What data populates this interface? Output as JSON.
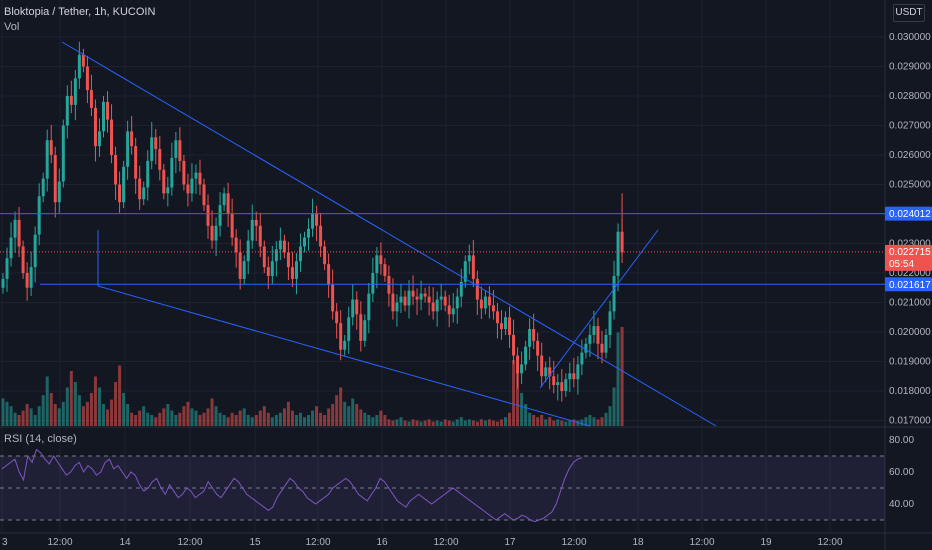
{
  "header": {
    "symbol": "Bloktopia / Tether, 1h, KUCOIN",
    "volume_label": "Vol",
    "currency": "USDT",
    "rsi_label": "RSI (14, close)"
  },
  "colors": {
    "background": "#131722",
    "grid": "#1e222d",
    "up": "#26a69a",
    "down": "#ef5350",
    "trendline": "#2962ff",
    "rsi_line": "#7e57c2",
    "axis_text": "#b2b5be"
  },
  "price_axis": {
    "ticks": [
      "0.030000",
      "0.029000",
      "0.028000",
      "0.027000",
      "0.026000",
      "0.025000",
      "0.024000",
      "0.023000",
      "0.022000",
      "0.021000",
      "0.020000",
      "0.019000",
      "0.018000",
      "0.017000"
    ]
  },
  "rsi_axis": {
    "ticks": [
      "80.00",
      "60.00",
      "40.00"
    ]
  },
  "time_axis": {
    "ticks": [
      "3",
      "12:00",
      "14",
      "12:00",
      "15",
      "12:00",
      "16",
      "12:00",
      "17",
      "12:00",
      "18",
      "12:00",
      "19",
      "12:00"
    ]
  },
  "price_labels": {
    "upper_level": "0.024012",
    "last_price": "0.022715",
    "countdown": "05:54",
    "lower_level": "0.021617"
  },
  "chart_data": {
    "type": "candlestick",
    "ylim": [
      0.0168,
      0.0312
    ],
    "horizontal_levels": [
      0.024012,
      0.021617
    ],
    "last_price": 0.022715,
    "closes": [
      0.0218,
      0.0225,
      0.0232,
      0.0238,
      0.0229,
      0.022,
      0.0215,
      0.0222,
      0.0233,
      0.0246,
      0.0252,
      0.0265,
      0.026,
      0.0244,
      0.0251,
      0.027,
      0.028,
      0.0277,
      0.0286,
      0.0294,
      0.029,
      0.0282,
      0.0276,
      0.0263,
      0.0268,
      0.0278,
      0.0272,
      0.026,
      0.025,
      0.0244,
      0.0256,
      0.0268,
      0.0263,
      0.0252,
      0.0245,
      0.0249,
      0.0258,
      0.0266,
      0.0262,
      0.0255,
      0.0247,
      0.0249,
      0.0259,
      0.0265,
      0.0258,
      0.025,
      0.0247,
      0.0252,
      0.0254,
      0.025,
      0.0243,
      0.0236,
      0.0231,
      0.0236,
      0.0243,
      0.0247,
      0.024,
      0.0232,
      0.0227,
      0.0218,
      0.0224,
      0.0231,
      0.0238,
      0.0236,
      0.0229,
      0.0222,
      0.0219,
      0.0224,
      0.0228,
      0.0231,
      0.0227,
      0.0222,
      0.0218,
      0.0224,
      0.0229,
      0.0232,
      0.0235,
      0.024,
      0.0236,
      0.0229,
      0.0223,
      0.0216,
      0.0207,
      0.0203,
      0.0194,
      0.0197,
      0.0205,
      0.0211,
      0.0206,
      0.0197,
      0.0204,
      0.0213,
      0.022,
      0.0226,
      0.0223,
      0.0219,
      0.0213,
      0.0207,
      0.021,
      0.0212,
      0.0209,
      0.0214,
      0.0212,
      0.0211,
      0.0213,
      0.0212,
      0.021,
      0.0207,
      0.0211,
      0.0212,
      0.0209,
      0.0206,
      0.0208,
      0.0212,
      0.0217,
      0.0224,
      0.0226,
      0.0218,
      0.0211,
      0.0208,
      0.0212,
      0.0209,
      0.0207,
      0.0203,
      0.0201,
      0.0205,
      0.0199,
      0.0192,
      0.0186,
      0.0189,
      0.0195,
      0.0201,
      0.0197,
      0.0192,
      0.0185,
      0.0188,
      0.0185,
      0.0182,
      0.0183,
      0.018,
      0.0184,
      0.0186,
      0.0184,
      0.0189,
      0.0193,
      0.0196,
      0.0199,
      0.0202,
      0.0196,
      0.0193,
      0.0199,
      0.0207,
      0.0219,
      0.0234,
      0.0227
    ],
    "volumes": [
      0.25,
      0.22,
      0.18,
      0.12,
      0.1,
      0.14,
      0.2,
      0.16,
      0.1,
      0.18,
      0.28,
      0.45,
      0.3,
      0.2,
      0.16,
      0.22,
      0.35,
      0.5,
      0.4,
      0.28,
      0.18,
      0.22,
      0.3,
      0.45,
      0.35,
      0.2,
      0.15,
      0.24,
      0.4,
      0.55,
      0.3,
      0.2,
      0.12,
      0.1,
      0.14,
      0.18,
      0.12,
      0.1,
      0.08,
      0.12,
      0.16,
      0.2,
      0.14,
      0.1,
      0.12,
      0.18,
      0.22,
      0.16,
      0.14,
      0.1,
      0.12,
      0.16,
      0.25,
      0.18,
      0.12,
      0.1,
      0.08,
      0.12,
      0.1,
      0.14,
      0.16,
      0.1,
      0.08,
      0.1,
      0.14,
      0.18,
      0.12,
      0.08,
      0.1,
      0.12,
      0.16,
      0.22,
      0.14,
      0.1,
      0.12,
      0.08,
      0.1,
      0.14,
      0.18,
      0.12,
      0.1,
      0.16,
      0.2,
      0.28,
      0.35,
      0.22,
      0.18,
      0.25,
      0.2,
      0.15,
      0.12,
      0.1,
      0.08,
      0.1,
      0.14,
      0.1,
      0.06,
      0.05,
      0.06,
      0.08,
      0.05,
      0.04,
      0.06,
      0.05,
      0.04,
      0.05,
      0.06,
      0.04,
      0.05,
      0.04,
      0.06,
      0.05,
      0.04,
      0.06,
      0.08,
      0.05,
      0.06,
      0.05,
      0.04,
      0.06,
      0.05,
      0.06,
      0.05,
      0.04,
      0.06,
      0.08,
      0.12,
      0.6,
      0.5,
      0.3,
      0.2,
      0.12,
      0.1,
      0.08,
      0.1,
      0.06,
      0.08,
      0.05,
      0.06,
      0.05,
      0.04,
      0.05,
      0.06,
      0.05,
      0.06,
      0.08,
      0.1,
      0.08,
      0.06,
      0.08,
      0.12,
      0.18,
      0.35,
      0.85,
      0.9
    ],
    "rsi": [
      62,
      64,
      66,
      68,
      60,
      55,
      70,
      66,
      74,
      72,
      68,
      65,
      70,
      66,
      62,
      58,
      60,
      64,
      66,
      60,
      64,
      62,
      58,
      60,
      66,
      68,
      62,
      64,
      60,
      56,
      60,
      58,
      52,
      48,
      50,
      54,
      56,
      50,
      46,
      52,
      48,
      44,
      46,
      50,
      48,
      44,
      46,
      48,
      54,
      50,
      46,
      44,
      48,
      52,
      56,
      54,
      50,
      46,
      44,
      42,
      40,
      38,
      36,
      38,
      44,
      48,
      52,
      56,
      54,
      50,
      48,
      44,
      42,
      40,
      42,
      44,
      46,
      50,
      52,
      54,
      56,
      54,
      50,
      46,
      44,
      42,
      46,
      50,
      56,
      54,
      50,
      46,
      42,
      40,
      38,
      42,
      44,
      46,
      44,
      42,
      40,
      42,
      44,
      46,
      48,
      50,
      48,
      46,
      44,
      42,
      40,
      38,
      36,
      34,
      32,
      30,
      32,
      34,
      32,
      30,
      31,
      33,
      32,
      30,
      29,
      30,
      31,
      33,
      35,
      40,
      48,
      56,
      62,
      66,
      68,
      69
    ]
  }
}
